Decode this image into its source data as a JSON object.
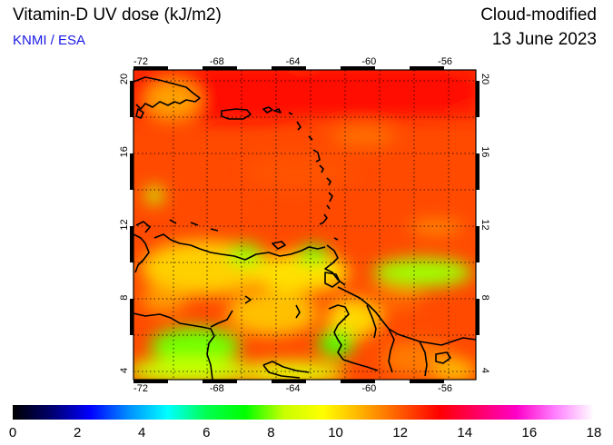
{
  "header": {
    "title": "Vitamin-D UV dose (kJ/m2)",
    "source": "KNMI / ESA",
    "product": "Cloud-modified",
    "date": "13 June 2023"
  },
  "map": {
    "lon_range": [
      -72,
      -54
    ],
    "lat_range": [
      3.5,
      20.5
    ],
    "lon_ticks": [
      -72,
      -68,
      -64,
      -60,
      -56
    ],
    "lat_ticks": [
      4,
      8,
      12,
      16,
      20
    ],
    "lon_tick_labels": [
      "-72",
      "-68",
      "-64",
      "-60",
      "-56"
    ],
    "lat_tick_labels": [
      "4",
      "8",
      "12",
      "16",
      "20"
    ],
    "grid": "dotted",
    "region": "Caribbean Sea / northern South America"
  },
  "colorbar": {
    "min": 0,
    "max": 18,
    "tick_labels": [
      "0",
      "2",
      "4",
      "6",
      "8",
      "10",
      "12",
      "14",
      "16",
      "18"
    ],
    "colors": [
      "#000000",
      "#00006e",
      "#0000ff",
      "#0090ff",
      "#00ffff",
      "#00ff50",
      "#00ff00",
      "#c8ff00",
      "#ffff00",
      "#ffb000",
      "#ff5a00",
      "#ff0000",
      "#ff0064",
      "#ff00c8",
      "#ff80ff",
      "#ffffff"
    ]
  },
  "colors": {
    "source_text": "#1a1ae6",
    "coast": "#000000"
  }
}
